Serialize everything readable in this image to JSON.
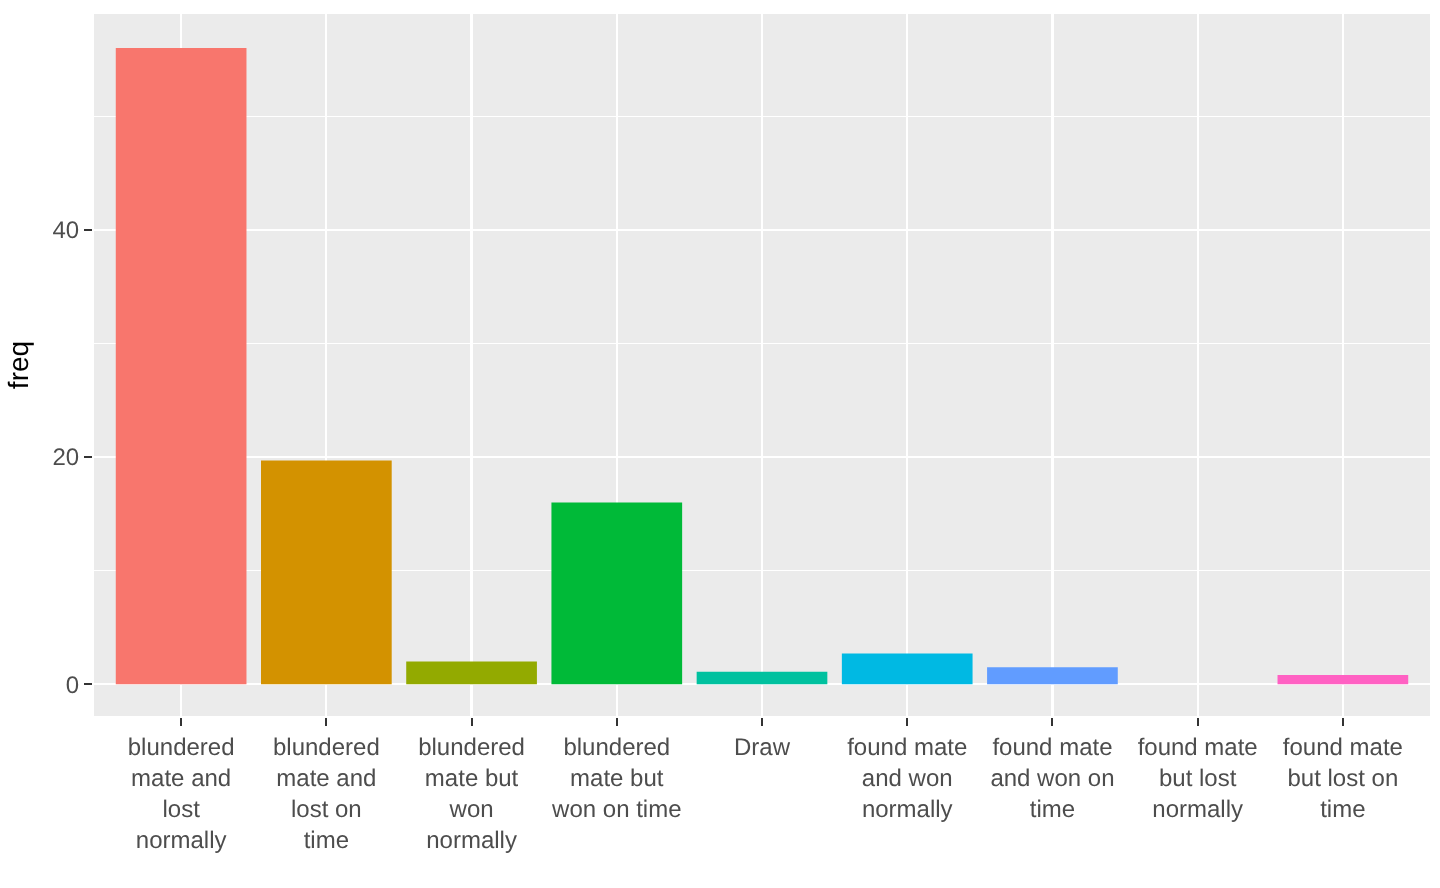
{
  "chart_data": {
    "type": "bar",
    "ylabel": "freq",
    "categories": [
      "blundered mate and lost normally",
      "blundered mate and lost on time",
      "blundered mate but won normally",
      "blundered mate but won on time",
      "Draw",
      "found mate and won normally",
      "found mate and won on time",
      "found mate but lost normally",
      "found mate but lost on time"
    ],
    "values": [
      56,
      19.7,
      2,
      16,
      1.1,
      2.7,
      1.5,
      0,
      0.8
    ],
    "colors": [
      "#f8766d",
      "#d39200",
      "#93aa00",
      "#00ba38",
      "#00c19f",
      "#00b9e3",
      "#619cff",
      "#db72fb",
      "#ff61c3"
    ],
    "ylim": [
      -2.8,
      59
    ],
    "yticks": [
      0,
      20,
      40
    ],
    "grid": true
  }
}
